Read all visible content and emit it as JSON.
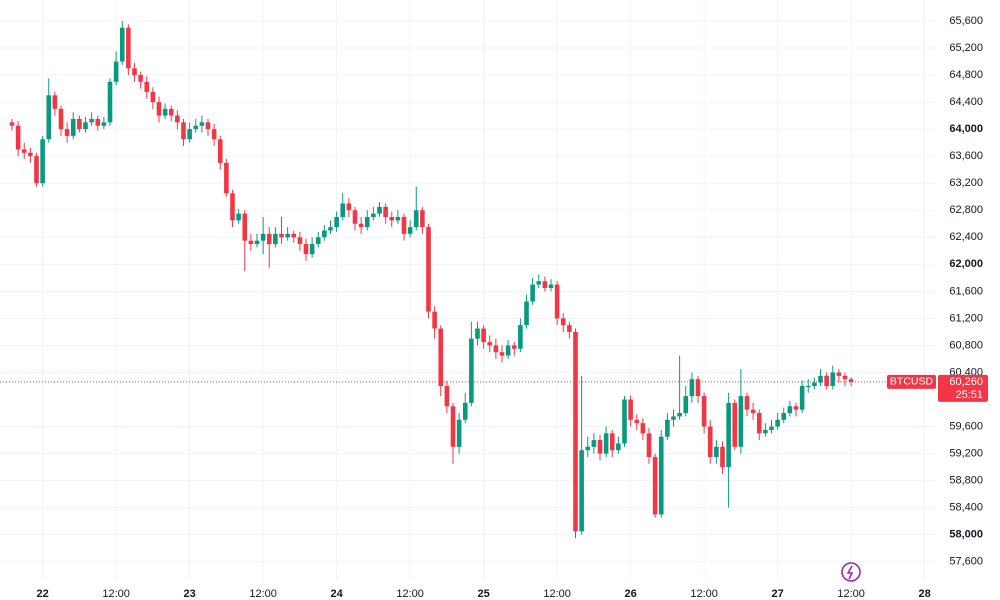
{
  "chart_data": {
    "type": "candlestick",
    "categories": [
      null,
      null,
      null,
      null,
      null,
      "22",
      null,
      null,
      null,
      null,
      null,
      null,
      null,
      null,
      null,
      null,
      null,
      "12:00",
      null,
      null,
      null,
      null,
      null,
      null,
      null,
      null,
      null,
      null,
      null,
      "23",
      null,
      null,
      null,
      null,
      null,
      null,
      null,
      null,
      null,
      null,
      null,
      "12:00",
      null,
      null,
      null,
      null,
      null,
      null,
      null,
      null,
      null,
      null,
      null,
      "24",
      null,
      null,
      null,
      null,
      null,
      null,
      null,
      null,
      null,
      null,
      null,
      "12:00",
      null,
      null,
      null,
      null,
      null,
      null,
      null,
      null,
      null,
      null,
      null,
      "25",
      null,
      null,
      null,
      null,
      null,
      null,
      null,
      null,
      null,
      null,
      null,
      "12:00",
      null,
      null,
      null,
      null,
      null,
      null,
      null,
      null,
      null,
      null,
      null,
      "26",
      null,
      null,
      null,
      null,
      null,
      null,
      null,
      null,
      null,
      null,
      null,
      "12:00",
      null,
      null,
      null,
      null,
      null,
      null,
      null,
      null,
      null,
      null,
      null,
      "27",
      null,
      null,
      null,
      null,
      null,
      null,
      null,
      null,
      null,
      null,
      null,
      "12:00",
      null,
      null,
      null,
      null,
      null,
      null,
      null,
      null,
      null,
      null,
      null,
      "28"
    ],
    "open": [
      64100,
      64050,
      63700,
      63650,
      63600,
      63200,
      63850,
      64500,
      64300,
      64000,
      63900,
      64150,
      64000,
      64100,
      64150,
      64050,
      64100,
      64700,
      65000,
      65500,
      64900,
      64800,
      64700,
      64550,
      64400,
      64200,
      64300,
      64200,
      64100,
      63850,
      64000,
      64050,
      64100,
      64000,
      63850,
      63500,
      63050,
      62650,
      62750,
      62350,
      62300,
      62350,
      62450,
      62300,
      62450,
      62400,
      62450,
      62400,
      62300,
      62150,
      62300,
      62400,
      62500,
      62550,
      62700,
      62900,
      62800,
      62600,
      62550,
      62700,
      62750,
      62850,
      62700,
      62650,
      62700,
      62450,
      62550,
      62800,
      62550,
      61300,
      61050,
      60200,
      59900,
      59300,
      59700,
      59950,
      60900,
      61050,
      60850,
      60800,
      60700,
      60650,
      60800,
      60750,
      61100,
      61450,
      61700,
      61750,
      61650,
      61700,
      61200,
      61100,
      61000,
      58050,
      59250,
      59300,
      59400,
      59200,
      59500,
      59250,
      59350,
      60000,
      59700,
      59650,
      59500,
      59150,
      58300,
      59450,
      59700,
      59750,
      59800,
      60050,
      60300,
      60050,
      59600,
      59150,
      59300,
      59000,
      59950,
      59300,
      60050,
      59850,
      59800,
      59500,
      59550,
      59600,
      59700,
      59800,
      59900,
      59850,
      60200,
      60200,
      60250,
      60350,
      60200,
      60400,
      60350,
      60300,
      null,
      null,
      null,
      null,
      null,
      null,
      null,
      null,
      null,
      null,
      null,
      null
    ],
    "high": [
      64150,
      64120,
      63800,
      63720,
      63650,
      63900,
      64750,
      64550,
      64350,
      64100,
      64250,
      64200,
      64180,
      64250,
      64200,
      64180,
      64750,
      65150,
      65600,
      65550,
      64980,
      64850,
      64780,
      64620,
      64480,
      64380,
      64350,
      64280,
      64150,
      64100,
      64150,
      64200,
      64150,
      64080,
      63900,
      63560,
      63100,
      62820,
      62800,
      62450,
      62450,
      62700,
      62550,
      62550,
      62700,
      62550,
      62500,
      62480,
      62380,
      62400,
      62480,
      62580,
      62650,
      62780,
      63050,
      62980,
      62850,
      62700,
      62800,
      62850,
      62920,
      62900,
      62780,
      62800,
      62750,
      62650,
      63150,
      62850,
      62600,
      61380,
      61100,
      60260,
      59950,
      59800,
      60100,
      61150,
      61150,
      61100,
      60950,
      60900,
      60800,
      60880,
      60850,
      61200,
      61550,
      61800,
      61850,
      61820,
      61780,
      61750,
      61280,
      61150,
      61050,
      60350,
      59450,
      59500,
      59480,
      59600,
      59550,
      59450,
      60050,
      60060,
      59780,
      59720,
      59580,
      59200,
      59550,
      59800,
      59850,
      60650,
      60200,
      60400,
      60350,
      60100,
      59700,
      59400,
      59380,
      60100,
      60000,
      60450,
      60100,
      59950,
      59850,
      59650,
      59700,
      59800,
      59880,
      59980,
      59950,
      60280,
      60300,
      60320,
      60450,
      60400,
      60500,
      60450,
      60400,
      60330,
      null,
      null,
      null,
      null,
      null,
      null,
      null,
      null,
      null,
      null,
      null,
      null
    ],
    "low": [
      63980,
      63600,
      63560,
      63500,
      63150,
      63150,
      63800,
      64200,
      63900,
      63800,
      63850,
      63950,
      63950,
      64050,
      63980,
      64000,
      64050,
      64650,
      64950,
      64800,
      64700,
      64600,
      64450,
      64300,
      64100,
      64150,
      64120,
      64000,
      63750,
      63800,
      63950,
      63950,
      63900,
      63750,
      63400,
      63000,
      62550,
      62600,
      61900,
      62200,
      62250,
      62150,
      61950,
      62250,
      62300,
      62350,
      62320,
      62200,
      62050,
      62100,
      62250,
      62350,
      62450,
      62480,
      62650,
      62700,
      62500,
      62450,
      62500,
      62650,
      62700,
      62600,
      62550,
      62600,
      62350,
      62400,
      62500,
      62450,
      61200,
      60900,
      60050,
      59800,
      59050,
      59200,
      59650,
      59900,
      60800,
      60750,
      60700,
      60600,
      60550,
      60600,
      60650,
      60700,
      61050,
      61400,
      61650,
      61600,
      61600,
      61100,
      61000,
      60900,
      57950,
      58000,
      59150,
      59200,
      59100,
      59150,
      59150,
      59200,
      59300,
      59600,
      59550,
      59400,
      59050,
      58250,
      58250,
      59400,
      59600,
      59700,
      59750,
      59950,
      59950,
      59500,
      59050,
      59050,
      58900,
      58400,
      59250,
      59200,
      59750,
      59700,
      59400,
      59450,
      59500,
      59550,
      59650,
      59750,
      59750,
      59800,
      60100,
      60150,
      60200,
      60150,
      60150,
      60250,
      60200,
      60200,
      null,
      null,
      null,
      null,
      null,
      null,
      null,
      null,
      null,
      null,
      null,
      null
    ],
    "close": [
      64050,
      63700,
      63650,
      63600,
      63200,
      63850,
      64500,
      64300,
      64000,
      63900,
      64150,
      64000,
      64100,
      64150,
      64050,
      64100,
      64700,
      65000,
      65500,
      64900,
      64800,
      64700,
      64550,
      64400,
      64200,
      64300,
      64200,
      64100,
      63850,
      64000,
      64050,
      64100,
      64000,
      63850,
      63500,
      63050,
      62650,
      62750,
      62350,
      62300,
      62350,
      62450,
      62300,
      62450,
      62400,
      62450,
      62400,
      62300,
      62150,
      62300,
      62400,
      62500,
      62550,
      62700,
      62900,
      62800,
      62600,
      62550,
      62700,
      62750,
      62850,
      62700,
      62650,
      62700,
      62450,
      62550,
      62800,
      62550,
      61300,
      61050,
      60200,
      59900,
      59300,
      59700,
      59950,
      60900,
      61050,
      60850,
      60800,
      60700,
      60650,
      60800,
      60750,
      61100,
      61450,
      61700,
      61750,
      61650,
      61700,
      61200,
      61100,
      61000,
      58050,
      59250,
      59300,
      59400,
      59200,
      59500,
      59250,
      59350,
      60000,
      59700,
      59650,
      59500,
      59150,
      58300,
      59450,
      59700,
      59750,
      59800,
      60050,
      60300,
      60050,
      59600,
      59150,
      59300,
      59000,
      59950,
      59300,
      60050,
      59850,
      59800,
      59500,
      59550,
      59600,
      59700,
      59800,
      59900,
      59850,
      60200,
      60200,
      60250,
      60350,
      60200,
      60400,
      60350,
      60300,
      60260,
      null,
      null,
      null,
      null,
      null,
      null,
      null,
      null,
      null,
      null,
      null,
      null
    ],
    "up_color": "#089981",
    "down_color": "#f23645",
    "ylim": [
      57330,
      65910
    ],
    "yticks": [
      {
        "value": 57600,
        "label": "57,600"
      },
      {
        "value": 58000,
        "label": "58,000"
      },
      {
        "value": 58400,
        "label": "58,400"
      },
      {
        "value": 58800,
        "label": "58,800"
      },
      {
        "value": 59200,
        "label": "59,200"
      },
      {
        "value": 59600,
        "label": "59,600"
      },
      {
        "value": 60400,
        "label": "60,400"
      },
      {
        "value": 60800,
        "label": "60,800"
      },
      {
        "value": 61200,
        "label": "61,200"
      },
      {
        "value": 61600,
        "label": "61,600"
      },
      {
        "value": 62000,
        "label": "62,000"
      },
      {
        "value": 62400,
        "label": "62,400"
      },
      {
        "value": 62800,
        "label": "62,800"
      },
      {
        "value": 63200,
        "label": "63,200"
      },
      {
        "value": 63600,
        "label": "63,600"
      },
      {
        "value": 64000,
        "label": "64,000"
      },
      {
        "value": 64400,
        "label": "64,400"
      },
      {
        "value": 64800,
        "label": "64,800"
      },
      {
        "value": 65200,
        "label": "65,200"
      },
      {
        "value": 65600,
        "label": "65,600"
      }
    ],
    "grid": true,
    "symbol": "BTCUSD",
    "last_price": {
      "value": 60260,
      "label": "60,260"
    },
    "countdown": "25:51"
  }
}
